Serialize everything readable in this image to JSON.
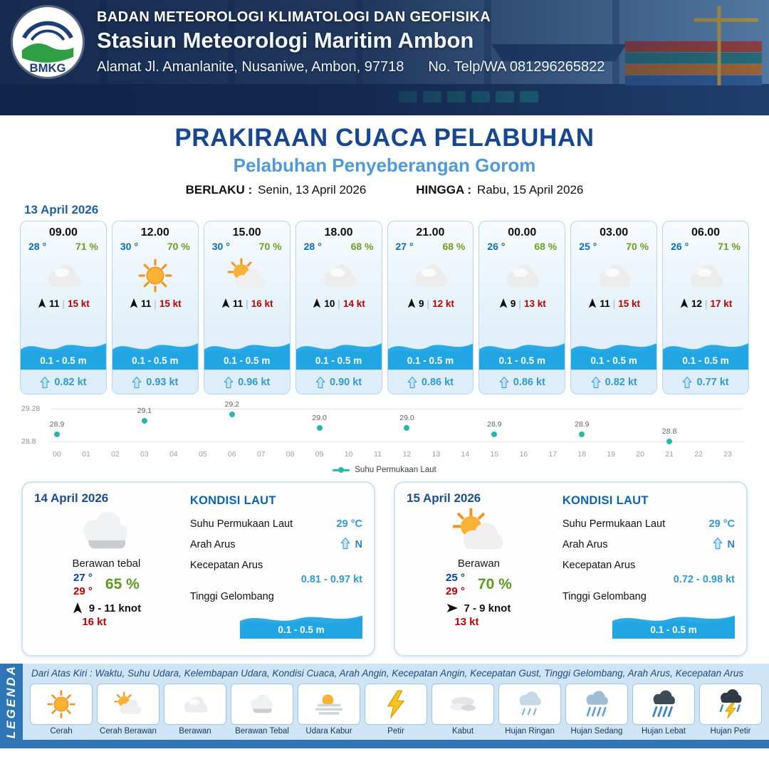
{
  "header": {
    "logo": "BMKG",
    "agency": "BADAN METEOROLOGI KLIMATOLOGI DAN GEOFISIKA",
    "station": "Stasiun Meteorologi Maritim Ambon",
    "address": "Alamat Jl. Amanlanite, Nusaniwe, Ambon, 97718",
    "phone": "No. Telp/WA  081296265822"
  },
  "title": {
    "main": "PRAKIRAAN CUACA PELABUHAN",
    "subtitle": "Pelabuhan Penyeberangan Gorom",
    "berlaku_label": "BERLAKU :",
    "berlaku_value": "Senin, 13 April 2026",
    "hingga_label": "HINGGA :",
    "hingga_value": "Rabu, 15 April 2026"
  },
  "forecast": {
    "date": "13 April 2026",
    "hours": [
      {
        "time": "09.00",
        "temp": "28 °",
        "rh": "71 %",
        "icon": "cloudy",
        "wind_dir_deg": 0,
        "wind_speed": "11",
        "wind_gust": "15 kt",
        "wave": "0.1 - 0.5 m",
        "current": "0.82 kt"
      },
      {
        "time": "12.00",
        "temp": "30 °",
        "rh": "70 %",
        "icon": "sunny",
        "wind_dir_deg": 0,
        "wind_speed": "11",
        "wind_gust": "15 kt",
        "wave": "0.1 - 0.5 m",
        "current": "0.93 kt"
      },
      {
        "time": "15.00",
        "temp": "30 °",
        "rh": "70 %",
        "icon": "partly",
        "wind_dir_deg": 0,
        "wind_speed": "11",
        "wind_gust": "16 kt",
        "wave": "0.1 - 0.5 m",
        "current": "0.96 kt"
      },
      {
        "time": "18.00",
        "temp": "28 °",
        "rh": "68 %",
        "icon": "cloudy",
        "wind_dir_deg": 0,
        "wind_speed": "10",
        "wind_gust": "14 kt",
        "wave": "0.1 - 0.5 m",
        "current": "0.90 kt"
      },
      {
        "time": "21.00",
        "temp": "27 °",
        "rh": "68 %",
        "icon": "cloudy",
        "wind_dir_deg": 0,
        "wind_speed": "9",
        "wind_gust": "12 kt",
        "wave": "0.1 - 0.5 m",
        "current": "0.86 kt"
      },
      {
        "time": "00.00",
        "temp": "26 °",
        "rh": "68 %",
        "icon": "cloudy",
        "wind_dir_deg": 0,
        "wind_speed": "9",
        "wind_gust": "13 kt",
        "wave": "0.1 - 0.5 m",
        "current": "0.86 kt"
      },
      {
        "time": "03.00",
        "temp": "25 °",
        "rh": "70 %",
        "icon": "cloudy",
        "wind_dir_deg": 0,
        "wind_speed": "11",
        "wind_gust": "15 kt",
        "wave": "0.1 - 0.5 m",
        "current": "0.82 kt"
      },
      {
        "time": "06.00",
        "temp": "26 °",
        "rh": "71 %",
        "icon": "cloudy",
        "wind_dir_deg": 0,
        "wind_speed": "12",
        "wind_gust": "17 kt",
        "wave": "0.1 - 0.5 m",
        "current": "0.77 kt"
      }
    ]
  },
  "chart_data": {
    "type": "scatter",
    "legend": "Suhu Permukaan Laut",
    "x_ticks": [
      "00",
      "01",
      "02",
      "03",
      "04",
      "05",
      "06",
      "07",
      "08",
      "09",
      "10",
      "11",
      "12",
      "13",
      "14",
      "15",
      "16",
      "17",
      "18",
      "19",
      "20",
      "21",
      "22",
      "23"
    ],
    "points": [
      {
        "x": 0,
        "y": 28.9,
        "label": "28.9"
      },
      {
        "x": 3,
        "y": 29.1,
        "label": "29.1"
      },
      {
        "x": 6,
        "y": 29.2,
        "label": "29.2"
      },
      {
        "x": 9,
        "y": 29.0,
        "label": "29.0"
      },
      {
        "x": 12,
        "y": 29.0,
        "label": "29.0"
      },
      {
        "x": 15,
        "y": 28.9,
        "label": "28.9"
      },
      {
        "x": 18,
        "y": 28.9,
        "label": "28.9"
      },
      {
        "x": 21,
        "y": 28.8,
        "label": "28.8"
      }
    ],
    "y_axis_labels": [
      "29.28",
      "28.8"
    ],
    "ylim": [
      28.8,
      29.28
    ],
    "dot_color": "#2ab7a9",
    "grid": true,
    "legend_position": "bottom"
  },
  "daily": [
    {
      "date": "14 April 2026",
      "icon": "cloudy-thick",
      "condition": "Berawan tebal",
      "temp_min": "27 °",
      "temp_max": "29 °",
      "rh": "65 %",
      "wind_dir_deg": 0,
      "wind": "9  - 11 knot",
      "gust": "16 kt",
      "sea": {
        "heading": "KONDISI LAUT",
        "sst_label": "Suhu Permukaan Laut",
        "sst": "29 °C",
        "arus_label": "Arah Arus",
        "arus_dir": "N",
        "kecepatan_label": "Kecepatan Arus",
        "kecepatan": "0.81 - 0.97 kt",
        "gelombang_label": "Tinggi Gelombang",
        "gelombang": "0.1 - 0.5 m"
      }
    },
    {
      "date": "15 April 2026",
      "icon": "partly",
      "condition": "Berawan",
      "temp_min": "25 °",
      "temp_max": "29 °",
      "rh": "70 %",
      "wind_dir_deg": 90,
      "wind": "7  - 9 knot",
      "gust": "13 kt",
      "sea": {
        "heading": "KONDISI LAUT",
        "sst_label": "Suhu Permukaan Laut",
        "sst": "29 °C",
        "arus_label": "Arah Arus",
        "arus_dir": "N",
        "kecepatan_label": "Kecepatan Arus",
        "kecepatan": "0.72 - 0.98 kt",
        "gelombang_label": "Tinggi Gelombang",
        "gelombang": "0.1 - 0.5 m"
      }
    }
  ],
  "legend": {
    "strip": "LEGENDA",
    "description": "Dari Atas Kiri : Waktu, Suhu Udara, Kelembapan Udara, Kondisi Cuaca, Arah Angin, Kecepatan Angin, Kecepatan Gust, Tinggi Gelombang, Arah Arus, Kecepatan Arus",
    "items": [
      {
        "label": "Cerah",
        "icon": "sunny"
      },
      {
        "label": "Cerah Berawan",
        "icon": "partly"
      },
      {
        "label": "Berawan",
        "icon": "cloudy"
      },
      {
        "label": "Berawan Tebal",
        "icon": "cloudy-thick"
      },
      {
        "label": "Udara Kabur",
        "icon": "haze"
      },
      {
        "label": "Petir",
        "icon": "thunder"
      },
      {
        "label": "Kabut",
        "icon": "fog"
      },
      {
        "label": "Hujan Ringan",
        "icon": "rain-light"
      },
      {
        "label": "Hujan Sedang",
        "icon": "rain-medium"
      },
      {
        "label": "Hujan Lebat",
        "icon": "rain-heavy"
      },
      {
        "label": "Hujan Petir",
        "icon": "storm"
      }
    ]
  }
}
